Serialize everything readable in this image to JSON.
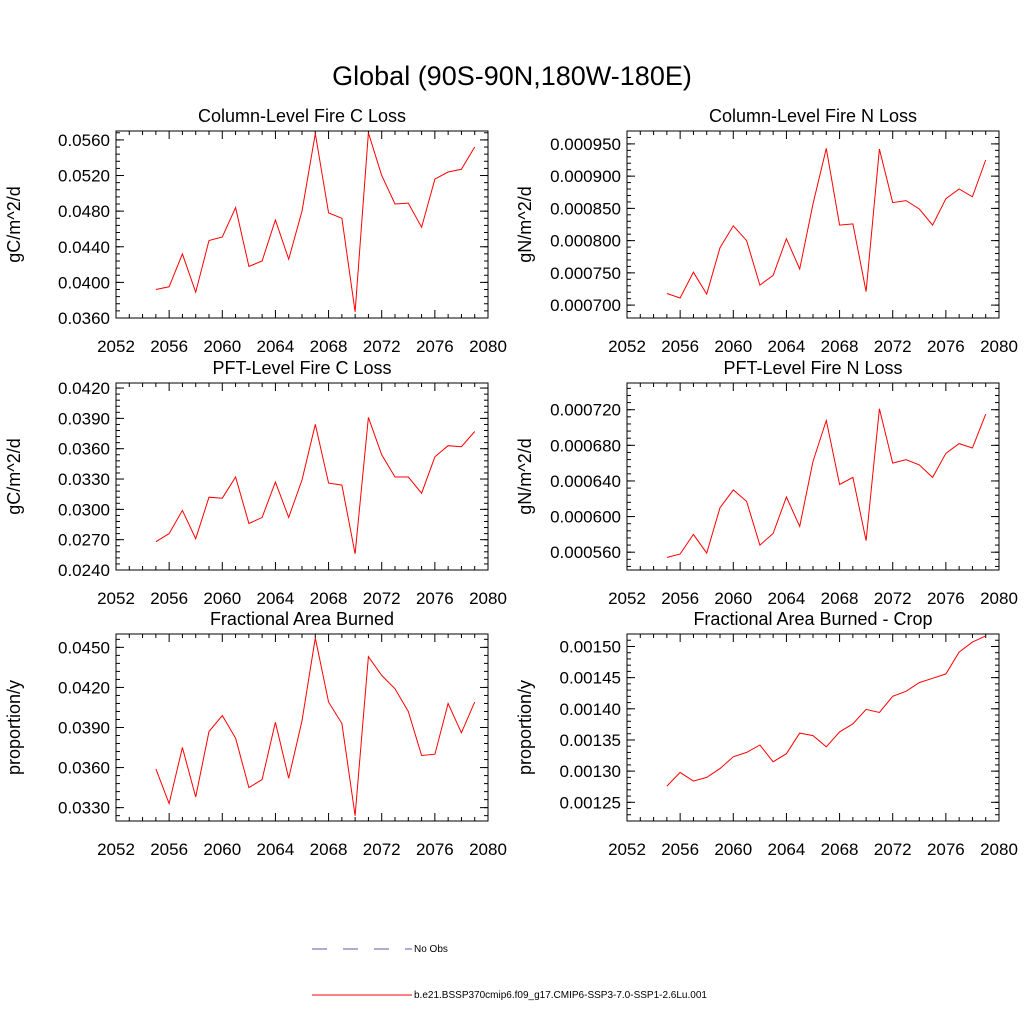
{
  "title": "Global (90S-90N,180W-180E)",
  "colors": {
    "model": "#ff0000",
    "obs": "#5a5aa0",
    "axis": "#000000"
  },
  "chart_data": [
    {
      "type": "line",
      "title": "Column-Level Fire C Loss",
      "ylabel": "gC/m^2/d",
      "xlim": [
        2052,
        2080
      ],
      "ylim": [
        0.036,
        0.057
      ],
      "xticks": [
        2052,
        2056,
        2060,
        2064,
        2068,
        2072,
        2076,
        2080
      ],
      "yticks": [
        0.036,
        0.04,
        0.044,
        0.048,
        0.052,
        0.056
      ],
      "ytick_labels": [
        "0.0360",
        "0.0400",
        "0.0440",
        "0.0480",
        "0.0520",
        "0.0560"
      ],
      "x": [
        2055,
        2056,
        2057,
        2058,
        2059,
        2060,
        2061,
        2062,
        2063,
        2064,
        2065,
        2066,
        2067,
        2068,
        2069,
        2070,
        2071,
        2072,
        2073,
        2074,
        2075,
        2076,
        2077,
        2078,
        2079
      ],
      "values": [
        0.0392,
        0.0395,
        0.0432,
        0.0389,
        0.0447,
        0.0451,
        0.0484,
        0.0418,
        0.0424,
        0.047,
        0.0426,
        0.048,
        0.0567,
        0.0478,
        0.0472,
        0.0367,
        0.0568,
        0.052,
        0.0488,
        0.0489,
        0.0462,
        0.0516,
        0.0524,
        0.0527,
        0.0552
      ]
    },
    {
      "type": "line",
      "title": "Column-Level Fire N Loss",
      "ylabel": "gN/m^2/d",
      "xlim": [
        2052,
        2080
      ],
      "ylim": [
        0.00068,
        0.00097
      ],
      "xticks": [
        2052,
        2056,
        2060,
        2064,
        2068,
        2072,
        2076,
        2080
      ],
      "yticks": [
        0.0007,
        0.00075,
        0.0008,
        0.00085,
        0.0009,
        0.00095
      ],
      "ytick_labels": [
        "0.000700",
        "0.000750",
        "0.000800",
        "0.000850",
        "0.000900",
        "0.000950"
      ],
      "x": [
        2055,
        2056,
        2057,
        2058,
        2059,
        2060,
        2061,
        2062,
        2063,
        2064,
        2065,
        2066,
        2067,
        2068,
        2069,
        2070,
        2071,
        2072,
        2073,
        2074,
        2075,
        2076,
        2077,
        2078,
        2079
      ],
      "values": [
        0.000718,
        0.000711,
        0.000751,
        0.000717,
        0.000789,
        0.000823,
        0.0008,
        0.000731,
        0.000746,
        0.000803,
        0.000756,
        0.000857,
        0.000943,
        0.000824,
        0.000826,
        0.000721,
        0.000942,
        0.000859,
        0.000862,
        0.000849,
        0.000824,
        0.000865,
        0.00088,
        0.000868,
        0.000925
      ]
    },
    {
      "type": "line",
      "title": "PFT-Level Fire C Loss",
      "ylabel": "gC/m^2/d",
      "xlim": [
        2052,
        2080
      ],
      "ylim": [
        0.024,
        0.0425
      ],
      "xticks": [
        2052,
        2056,
        2060,
        2064,
        2068,
        2072,
        2076,
        2080
      ],
      "yticks": [
        0.024,
        0.027,
        0.03,
        0.033,
        0.036,
        0.039,
        0.042
      ],
      "ytick_labels": [
        "0.0240",
        "0.0270",
        "0.0300",
        "0.0330",
        "0.0360",
        "0.0390",
        "0.0420"
      ],
      "x": [
        2055,
        2056,
        2057,
        2058,
        2059,
        2060,
        2061,
        2062,
        2063,
        2064,
        2065,
        2066,
        2067,
        2068,
        2069,
        2070,
        2071,
        2072,
        2073,
        2074,
        2075,
        2076,
        2077,
        2078,
        2079
      ],
      "values": [
        0.0268,
        0.0276,
        0.0299,
        0.0271,
        0.0312,
        0.0311,
        0.0332,
        0.0286,
        0.0292,
        0.0327,
        0.0292,
        0.0329,
        0.0384,
        0.0326,
        0.0324,
        0.0256,
        0.0391,
        0.0354,
        0.0332,
        0.0332,
        0.0316,
        0.0352,
        0.0363,
        0.0362,
        0.0377
      ]
    },
    {
      "type": "line",
      "title": "PFT-Level Fire N Loss",
      "ylabel": "gN/m^2/d",
      "xlim": [
        2052,
        2080
      ],
      "ylim": [
        0.00054,
        0.00075
      ],
      "xticks": [
        2052,
        2056,
        2060,
        2064,
        2068,
        2072,
        2076,
        2080
      ],
      "yticks": [
        0.00056,
        0.0006,
        0.00064,
        0.00068,
        0.00072
      ],
      "ytick_labels": [
        "0.000560",
        "0.000600",
        "0.000640",
        "0.000680",
        "0.000720"
      ],
      "x": [
        2055,
        2056,
        2057,
        2058,
        2059,
        2060,
        2061,
        2062,
        2063,
        2064,
        2065,
        2066,
        2067,
        2068,
        2069,
        2070,
        2071,
        2072,
        2073,
        2074,
        2075,
        2076,
        2077,
        2078,
        2079
      ],
      "values": [
        0.000554,
        0.000558,
        0.00058,
        0.000559,
        0.00061,
        0.00063,
        0.000617,
        0.000568,
        0.000581,
        0.000622,
        0.000589,
        0.000662,
        0.000708,
        0.000636,
        0.000644,
        0.000573,
        0.000721,
        0.00066,
        0.000664,
        0.000658,
        0.000644,
        0.000671,
        0.000682,
        0.000677,
        0.000715
      ]
    },
    {
      "type": "line",
      "title": "Fractional Area Burned",
      "ylabel": "proportion/y",
      "xlim": [
        2052,
        2080
      ],
      "ylim": [
        0.032,
        0.046
      ],
      "xticks": [
        2052,
        2056,
        2060,
        2064,
        2068,
        2072,
        2076,
        2080
      ],
      "yticks": [
        0.033,
        0.036,
        0.039,
        0.042,
        0.045
      ],
      "ytick_labels": [
        "0.0330",
        "0.0360",
        "0.0390",
        "0.0420",
        "0.0450"
      ],
      "x": [
        2055,
        2056,
        2057,
        2058,
        2059,
        2060,
        2061,
        2062,
        2063,
        2064,
        2065,
        2066,
        2067,
        2068,
        2069,
        2070,
        2071,
        2072,
        2073,
        2074,
        2075,
        2076,
        2077,
        2078,
        2079
      ],
      "values": [
        0.0359,
        0.0333,
        0.0375,
        0.0338,
        0.0387,
        0.0399,
        0.0382,
        0.0345,
        0.0351,
        0.0394,
        0.0352,
        0.0395,
        0.0457,
        0.0409,
        0.0393,
        0.0324,
        0.0443,
        0.0429,
        0.0419,
        0.0402,
        0.0369,
        0.037,
        0.0408,
        0.0386,
        0.0409
      ]
    },
    {
      "type": "line",
      "title": "Fractional Area Burned - Crop",
      "ylabel": "proportion/y",
      "xlim": [
        2052,
        2080
      ],
      "ylim": [
        0.00122,
        0.00152
      ],
      "xticks": [
        2052,
        2056,
        2060,
        2064,
        2068,
        2072,
        2076,
        2080
      ],
      "yticks": [
        0.00125,
        0.0013,
        0.00135,
        0.0014,
        0.00145,
        0.0015
      ],
      "ytick_labels": [
        "0.00125",
        "0.00130",
        "0.00135",
        "0.00140",
        "0.00145",
        "0.00150"
      ],
      "x": [
        2055,
        2056,
        2057,
        2058,
        2059,
        2060,
        2061,
        2062,
        2063,
        2064,
        2065,
        2066,
        2067,
        2068,
        2069,
        2070,
        2071,
        2072,
        2073,
        2074,
        2075,
        2076,
        2077,
        2078,
        2079
      ],
      "values": [
        0.001276,
        0.001298,
        0.001284,
        0.00129,
        0.001304,
        0.001323,
        0.00133,
        0.001342,
        0.001315,
        0.001328,
        0.001361,
        0.001357,
        0.001339,
        0.001363,
        0.001376,
        0.001399,
        0.001394,
        0.00142,
        0.001428,
        0.001442,
        0.001449,
        0.001456,
        0.001491,
        0.001507,
        0.001517
      ]
    }
  ],
  "legend": [
    {
      "label": "No Obs",
      "style": "dashed"
    },
    {
      "label": "b.e21.BSSP370cmip6.f09_g17.CMIP6-SSP3-7.0-SSP1-2.6Lu.001",
      "style": "solid"
    }
  ]
}
